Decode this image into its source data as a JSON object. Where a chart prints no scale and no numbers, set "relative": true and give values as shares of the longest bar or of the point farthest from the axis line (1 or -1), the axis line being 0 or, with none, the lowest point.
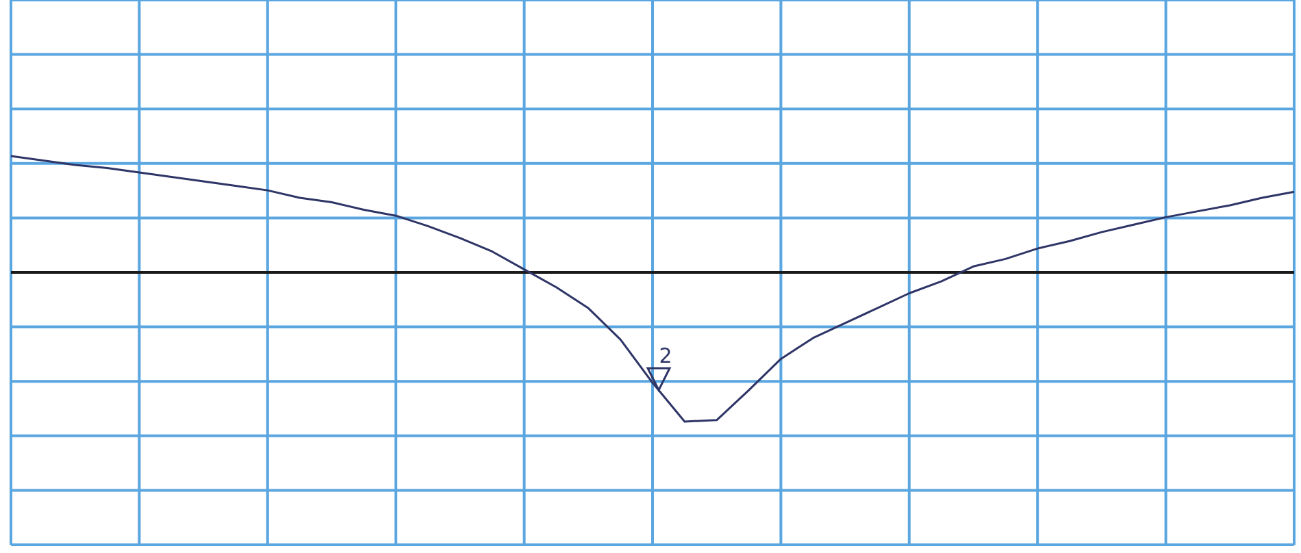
{
  "chart_data": {
    "type": "line",
    "relative": true,
    "grid": true,
    "categories": [
      null,
      null,
      null,
      null,
      null,
      null,
      null,
      null,
      null,
      null,
      null,
      null,
      null,
      null,
      null,
      null,
      null,
      null,
      null,
      null,
      null,
      null,
      null,
      null,
      null,
      null,
      null,
      null,
      null,
      null,
      null,
      null,
      null,
      null,
      null,
      null,
      null,
      null,
      null,
      null,
      null
    ],
    "series": [
      {
        "color": "#2e3567",
        "values": [
          0.78,
          0.75,
          0.72,
          0.7,
          0.67,
          0.64,
          0.61,
          0.58,
          0.55,
          0.5,
          0.47,
          0.42,
          0.38,
          0.31,
          0.23,
          0.14,
          0.02,
          -0.1,
          -0.24,
          -0.45,
          -0.74,
          -1,
          -0.99,
          -0.79,
          -0.58,
          -0.44,
          -0.34,
          -0.24,
          -0.14,
          -0.06,
          0.04,
          0.09,
          0.16,
          0.21,
          0.27,
          0.32,
          0.37,
          0.41,
          0.45,
          0.5,
          0.54
        ]
      }
    ],
    "annotations": [
      "2"
    ]
  }
}
